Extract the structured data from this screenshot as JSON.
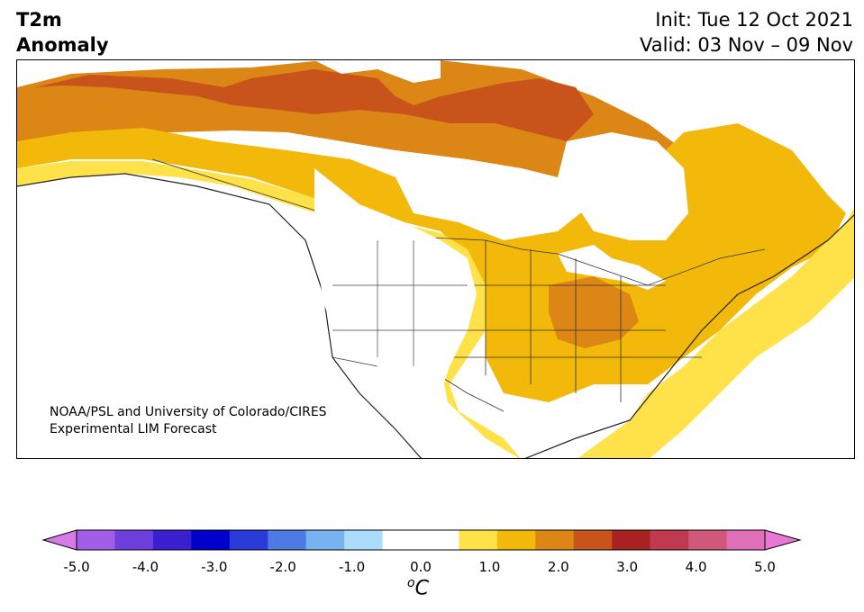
{
  "header": {
    "title_line1": "T2m",
    "title_line2": "Anomaly",
    "init_text": "Init: Tue 12 Oct 2021",
    "valid_text": "Valid: 03 Nov – 09 Nov"
  },
  "map": {
    "region": "North America",
    "credit_line1": "NOAA/PSL and University of Colorado/CIRES",
    "credit_line2": "Experimental LIM Forecast"
  },
  "colorbar": {
    "tick_labels": [
      "-5.0",
      "-4.0",
      "-3.0",
      "-2.0",
      "-1.0",
      "0.0",
      "1.0",
      "2.0",
      "3.0",
      "4.0",
      "5.0"
    ],
    "unit_prefix": "o",
    "unit_main": "C",
    "bin_colors": [
      "#a25ee6",
      "#6f3fdd",
      "#3a1fd0",
      "#0000cd",
      "#2a3ad8",
      "#4f79e3",
      "#78b2ef",
      "#acdcfb",
      "#ffffff",
      "#ffffff",
      "#ffe14a",
      "#f2b90b",
      "#dc8616",
      "#c8541b",
      "#a82222",
      "#c03a4f",
      "#d0587a",
      "#e070b9"
    ],
    "under_color": "#d77ae8",
    "over_color": "#e878d6"
  }
}
